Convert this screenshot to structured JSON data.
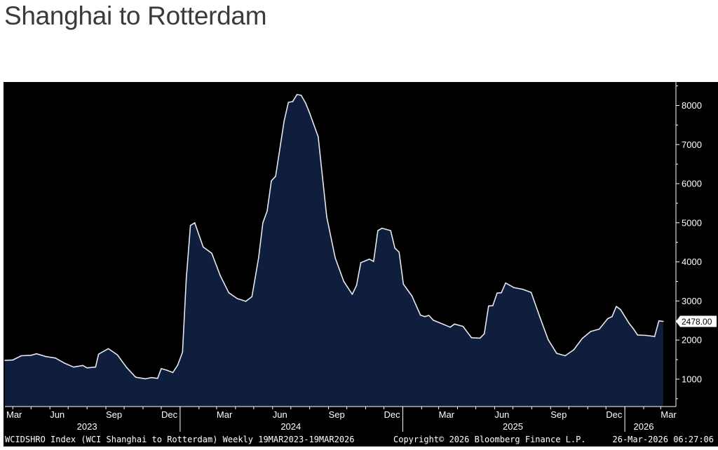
{
  "page": {
    "title": "Shanghai to Rotterdam"
  },
  "footer": {
    "left": "WCIDSHRO Index (WCI Shanghai to Rotterdam) Weekly 19MAR2023-19MAR2026",
    "center": "Copyright© 2026 Bloomberg Finance L.P.",
    "right": "26-Mar-2026 06:27:06"
  },
  "colors": {
    "background": "#000000",
    "area_fill": "#0f1e3d",
    "line": "#e6e8ec",
    "axis_text": "#ffffff"
  },
  "chart_data": {
    "type": "area",
    "title": "",
    "xlabel": "",
    "ylabel": "",
    "ylim": [
      300,
      8600
    ],
    "xlim": [
      "2023-03-19",
      "2026-03-26"
    ],
    "grid": false,
    "y_axis_side": "right",
    "y_ticks": [
      1000,
      2000,
      3000,
      4000,
      5000,
      6000,
      7000,
      8000
    ],
    "month_ticks": [
      {
        "date": "2023-03-01",
        "label": "Mar"
      },
      {
        "date": "2023-06-01",
        "label": "Jun"
      },
      {
        "date": "2023-09-01",
        "label": "Sep"
      },
      {
        "date": "2023-12-01",
        "label": "Dec"
      },
      {
        "date": "2024-03-01",
        "label": "Mar"
      },
      {
        "date": "2024-06-01",
        "label": "Jun"
      },
      {
        "date": "2024-09-01",
        "label": "Sep"
      },
      {
        "date": "2024-12-01",
        "label": "Dec"
      },
      {
        "date": "2025-03-01",
        "label": "Mar"
      },
      {
        "date": "2025-06-01",
        "label": "Jun"
      },
      {
        "date": "2025-09-01",
        "label": "Sep"
      },
      {
        "date": "2025-12-01",
        "label": "Dec"
      },
      {
        "date": "2026-03-01",
        "label": "Mar"
      }
    ],
    "year_labels": [
      {
        "year": "2023",
        "date": "2023-08-01"
      },
      {
        "year": "2024",
        "date": "2024-07-01"
      },
      {
        "year": "2025",
        "date": "2025-07-01"
      },
      {
        "year": "2026",
        "date": "2026-02-01"
      }
    ],
    "year_dividers": [
      "2024-01-01",
      "2025-01-01",
      "2026-01-01"
    ],
    "last_value_label": "2478.00",
    "series": [
      {
        "values": [
          {
            "x": "2023-03-19",
            "y": 1480
          },
          {
            "x": "2023-04-01",
            "y": 1490
          },
          {
            "x": "2023-04-15",
            "y": 1600
          },
          {
            "x": "2023-05-01",
            "y": 1610
          },
          {
            "x": "2023-05-10",
            "y": 1650
          },
          {
            "x": "2023-05-25",
            "y": 1580
          },
          {
            "x": "2023-06-10",
            "y": 1540
          },
          {
            "x": "2023-06-25",
            "y": 1410
          },
          {
            "x": "2023-07-10",
            "y": 1310
          },
          {
            "x": "2023-07-25",
            "y": 1350
          },
          {
            "x": "2023-08-01",
            "y": 1290
          },
          {
            "x": "2023-08-15",
            "y": 1310
          },
          {
            "x": "2023-08-20",
            "y": 1640
          },
          {
            "x": "2023-09-05",
            "y": 1780
          },
          {
            "x": "2023-09-20",
            "y": 1620
          },
          {
            "x": "2023-10-05",
            "y": 1300
          },
          {
            "x": "2023-10-20",
            "y": 1050
          },
          {
            "x": "2023-11-05",
            "y": 1010
          },
          {
            "x": "2023-11-15",
            "y": 1040
          },
          {
            "x": "2023-11-25",
            "y": 1020
          },
          {
            "x": "2023-12-01",
            "y": 1270
          },
          {
            "x": "2023-12-10",
            "y": 1230
          },
          {
            "x": "2023-12-20",
            "y": 1170
          },
          {
            "x": "2023-12-28",
            "y": 1360
          },
          {
            "x": "2024-01-05",
            "y": 1690
          },
          {
            "x": "2024-01-11",
            "y": 3550
          },
          {
            "x": "2024-01-18",
            "y": 4930
          },
          {
            "x": "2024-01-25",
            "y": 5000
          },
          {
            "x": "2024-02-08",
            "y": 4380
          },
          {
            "x": "2024-02-22",
            "y": 4220
          },
          {
            "x": "2024-03-07",
            "y": 3650
          },
          {
            "x": "2024-03-21",
            "y": 3210
          },
          {
            "x": "2024-04-04",
            "y": 3060
          },
          {
            "x": "2024-04-18",
            "y": 2990
          },
          {
            "x": "2024-04-28",
            "y": 3110
          },
          {
            "x": "2024-05-09",
            "y": 4100
          },
          {
            "x": "2024-05-16",
            "y": 5000
          },
          {
            "x": "2024-05-23",
            "y": 5300
          },
          {
            "x": "2024-05-30",
            "y": 6070
          },
          {
            "x": "2024-06-06",
            "y": 6190
          },
          {
            "x": "2024-06-20",
            "y": 7600
          },
          {
            "x": "2024-06-27",
            "y": 8080
          },
          {
            "x": "2024-07-04",
            "y": 8100
          },
          {
            "x": "2024-07-11",
            "y": 8280
          },
          {
            "x": "2024-07-18",
            "y": 8260
          },
          {
            "x": "2024-07-25",
            "y": 8070
          },
          {
            "x": "2024-08-01",
            "y": 7800
          },
          {
            "x": "2024-08-15",
            "y": 7200
          },
          {
            "x": "2024-08-29",
            "y": 5150
          },
          {
            "x": "2024-09-12",
            "y": 4100
          },
          {
            "x": "2024-09-26",
            "y": 3500
          },
          {
            "x": "2024-10-10",
            "y": 3170
          },
          {
            "x": "2024-10-17",
            "y": 3400
          },
          {
            "x": "2024-10-24",
            "y": 3980
          },
          {
            "x": "2024-11-07",
            "y": 4070
          },
          {
            "x": "2024-11-14",
            "y": 4010
          },
          {
            "x": "2024-11-21",
            "y": 4800
          },
          {
            "x": "2024-11-28",
            "y": 4860
          },
          {
            "x": "2024-12-12",
            "y": 4800
          },
          {
            "x": "2024-12-19",
            "y": 4350
          },
          {
            "x": "2024-12-26",
            "y": 4250
          },
          {
            "x": "2025-01-02",
            "y": 3430
          },
          {
            "x": "2025-01-16",
            "y": 3130
          },
          {
            "x": "2025-01-30",
            "y": 2640
          },
          {
            "x": "2025-02-06",
            "y": 2600
          },
          {
            "x": "2025-02-13",
            "y": 2630
          },
          {
            "x": "2025-02-20",
            "y": 2510
          },
          {
            "x": "2025-03-06",
            "y": 2420
          },
          {
            "x": "2025-03-20",
            "y": 2330
          },
          {
            "x": "2025-03-27",
            "y": 2410
          },
          {
            "x": "2025-04-10",
            "y": 2350
          },
          {
            "x": "2025-04-24",
            "y": 2060
          },
          {
            "x": "2025-05-08",
            "y": 2050
          },
          {
            "x": "2025-05-15",
            "y": 2160
          },
          {
            "x": "2025-05-22",
            "y": 2870
          },
          {
            "x": "2025-05-29",
            "y": 2880
          },
          {
            "x": "2025-06-05",
            "y": 3200
          },
          {
            "x": "2025-06-12",
            "y": 3210
          },
          {
            "x": "2025-06-19",
            "y": 3460
          },
          {
            "x": "2025-07-03",
            "y": 3340
          },
          {
            "x": "2025-07-17",
            "y": 3300
          },
          {
            "x": "2025-07-31",
            "y": 3220
          },
          {
            "x": "2025-08-14",
            "y": 2600
          },
          {
            "x": "2025-08-28",
            "y": 2010
          },
          {
            "x": "2025-09-11",
            "y": 1660
          },
          {
            "x": "2025-09-25",
            "y": 1600
          },
          {
            "x": "2025-10-09",
            "y": 1750
          },
          {
            "x": "2025-10-23",
            "y": 2040
          },
          {
            "x": "2025-11-06",
            "y": 2220
          },
          {
            "x": "2025-11-20",
            "y": 2280
          },
          {
            "x": "2025-12-04",
            "y": 2550
          },
          {
            "x": "2025-12-11",
            "y": 2600
          },
          {
            "x": "2025-12-18",
            "y": 2860
          },
          {
            "x": "2025-12-25",
            "y": 2780
          },
          {
            "x": "2026-01-08",
            "y": 2430
          },
          {
            "x": "2026-01-15",
            "y": 2290
          },
          {
            "x": "2026-01-22",
            "y": 2130
          },
          {
            "x": "2026-02-05",
            "y": 2120
          },
          {
            "x": "2026-02-19",
            "y": 2090
          },
          {
            "x": "2026-02-26",
            "y": 2490
          },
          {
            "x": "2026-03-05",
            "y": 2478
          }
        ]
      }
    ]
  }
}
